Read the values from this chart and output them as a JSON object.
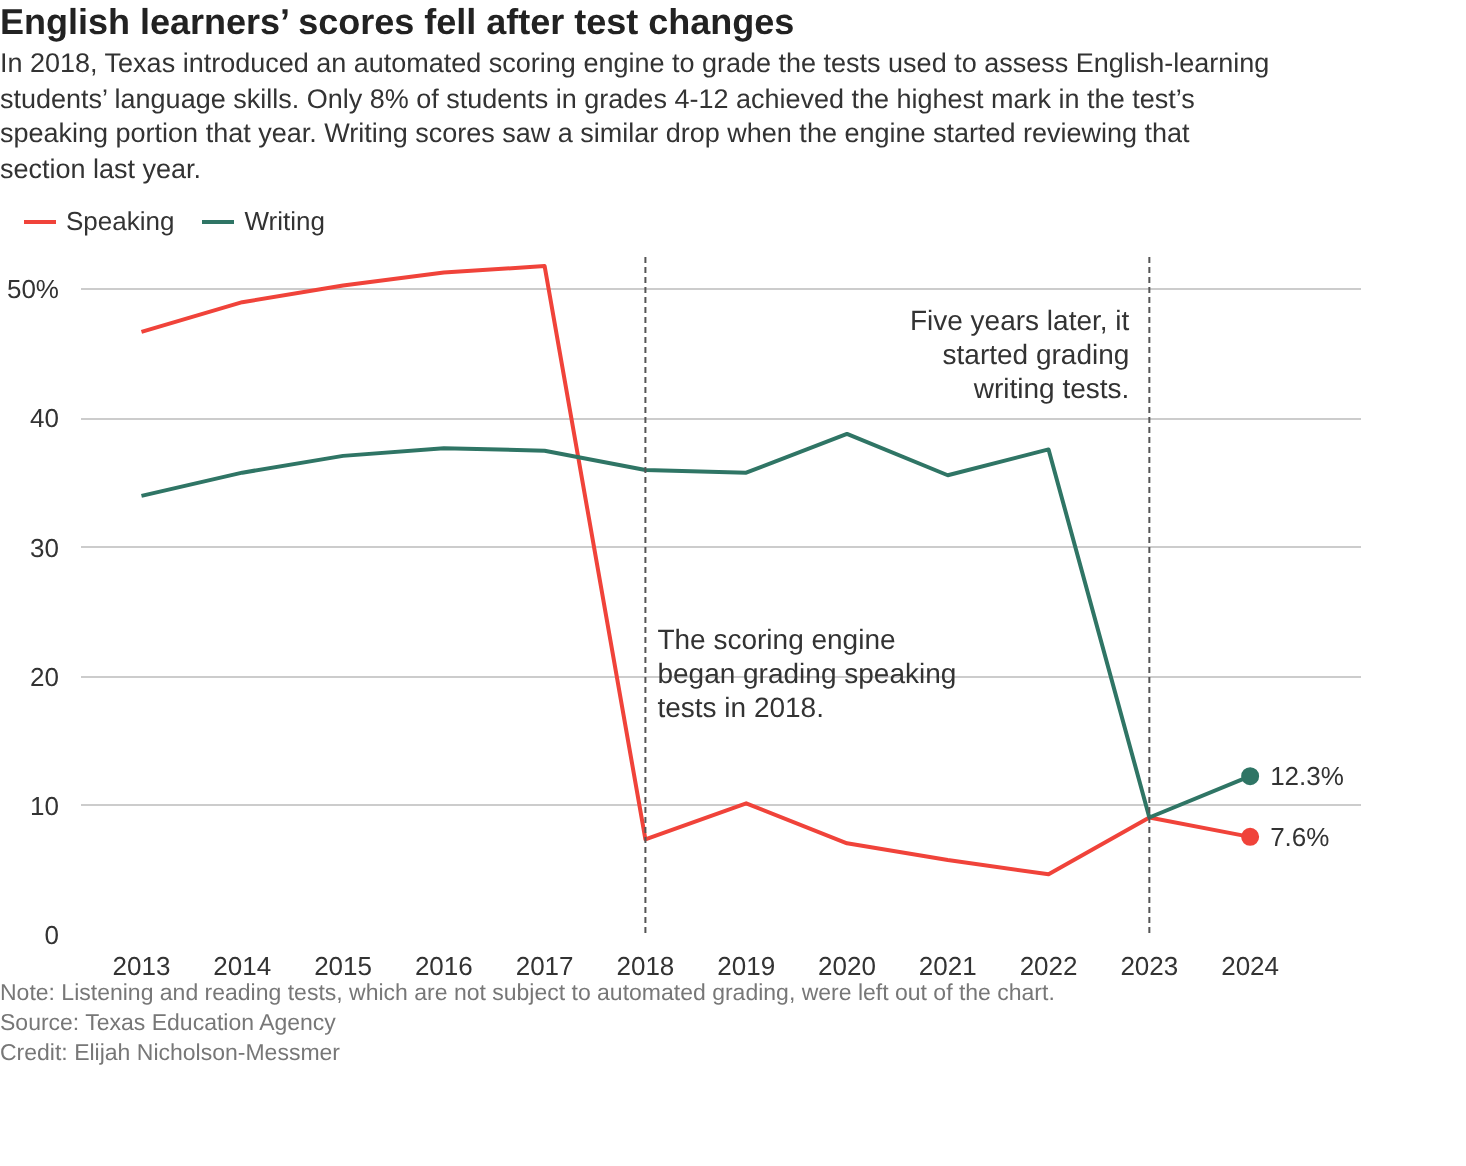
{
  "chart_data": {
    "type": "line",
    "title": "English learners’ scores fell after test changes",
    "subtitle": "In 2018, Texas introduced an automated scoring engine to grade the tests used to assess English-learning students’ language skills. Only 8% of students in grades 4-12 achieved the highest mark in the test’s speaking portion that year. Writing scores saw a similar drop when the engine started reviewing that section last year.",
    "x": [
      2013,
      2014,
      2015,
      2016,
      2017,
      2018,
      2019,
      2020,
      2021,
      2022,
      2023,
      2024
    ],
    "series": [
      {
        "name": "Speaking",
        "color": "#f0433a",
        "values": [
          46.7,
          49.0,
          50.3,
          51.3,
          51.8,
          7.4,
          10.2,
          7.1,
          5.8,
          4.7,
          9.1,
          7.6
        ],
        "value_labels": [
          null,
          null,
          null,
          null,
          null,
          null,
          null,
          null,
          null,
          null,
          null,
          "7.6%"
        ]
      },
      {
        "name": "Writing",
        "color": "#2f7565",
        "values": [
          34.0,
          35.8,
          37.1,
          37.7,
          37.5,
          36.0,
          35.8,
          38.8,
          35.6,
          37.6,
          9.1,
          12.3
        ],
        "value_labels": [
          null,
          null,
          null,
          null,
          null,
          null,
          null,
          null,
          null,
          null,
          null,
          "12.3%"
        ]
      }
    ],
    "xlim": [
      2012.4,
      2025.1
    ],
    "xticks": [
      2013,
      2014,
      2015,
      2016,
      2017,
      2018,
      2019,
      2020,
      2021,
      2022,
      2023,
      2024
    ],
    "ylim": [
      0,
      52.5
    ],
    "yticks": [
      0,
      10,
      20,
      30,
      40,
      {
        "value": 50,
        "label": "50%"
      }
    ],
    "grid": "y",
    "legend": "top left",
    "ref_lines": [
      {
        "axis": "x",
        "value": 2018,
        "line_style": "dashed",
        "color": "#555555",
        "label": "The scoring engine began grading speaking tests in 2018."
      },
      {
        "axis": "x",
        "value": 2023,
        "line_style": "dashed",
        "color": "#555555",
        "label": "Five years later, it started grading writing tests."
      }
    ],
    "annotations": [
      "Note: Listening and reading tests, which are not subject to automated grading, were left out of the chart.",
      "Source: Texas Education Agency",
      "Credit: Elijah Nicholson-Messmer"
    ]
  }
}
